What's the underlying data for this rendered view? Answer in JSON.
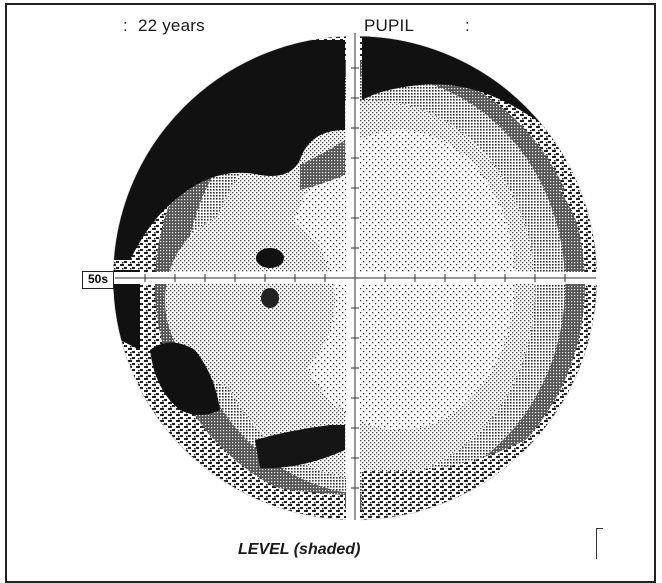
{
  "header": {
    "colon_left": ":",
    "age": "22 years",
    "pupil_label": "PUPIL",
    "colon_right": ":"
  },
  "scale_label": "50s",
  "footer": {
    "title": "LEVEL (shaded)"
  },
  "colors": {
    "background": "#ffffff",
    "darkest": "#111111",
    "dark": "#3a3a3a",
    "medium": "#8a8a8a",
    "light": "#c8c8c8",
    "lightest": "#f2f2f2"
  }
}
